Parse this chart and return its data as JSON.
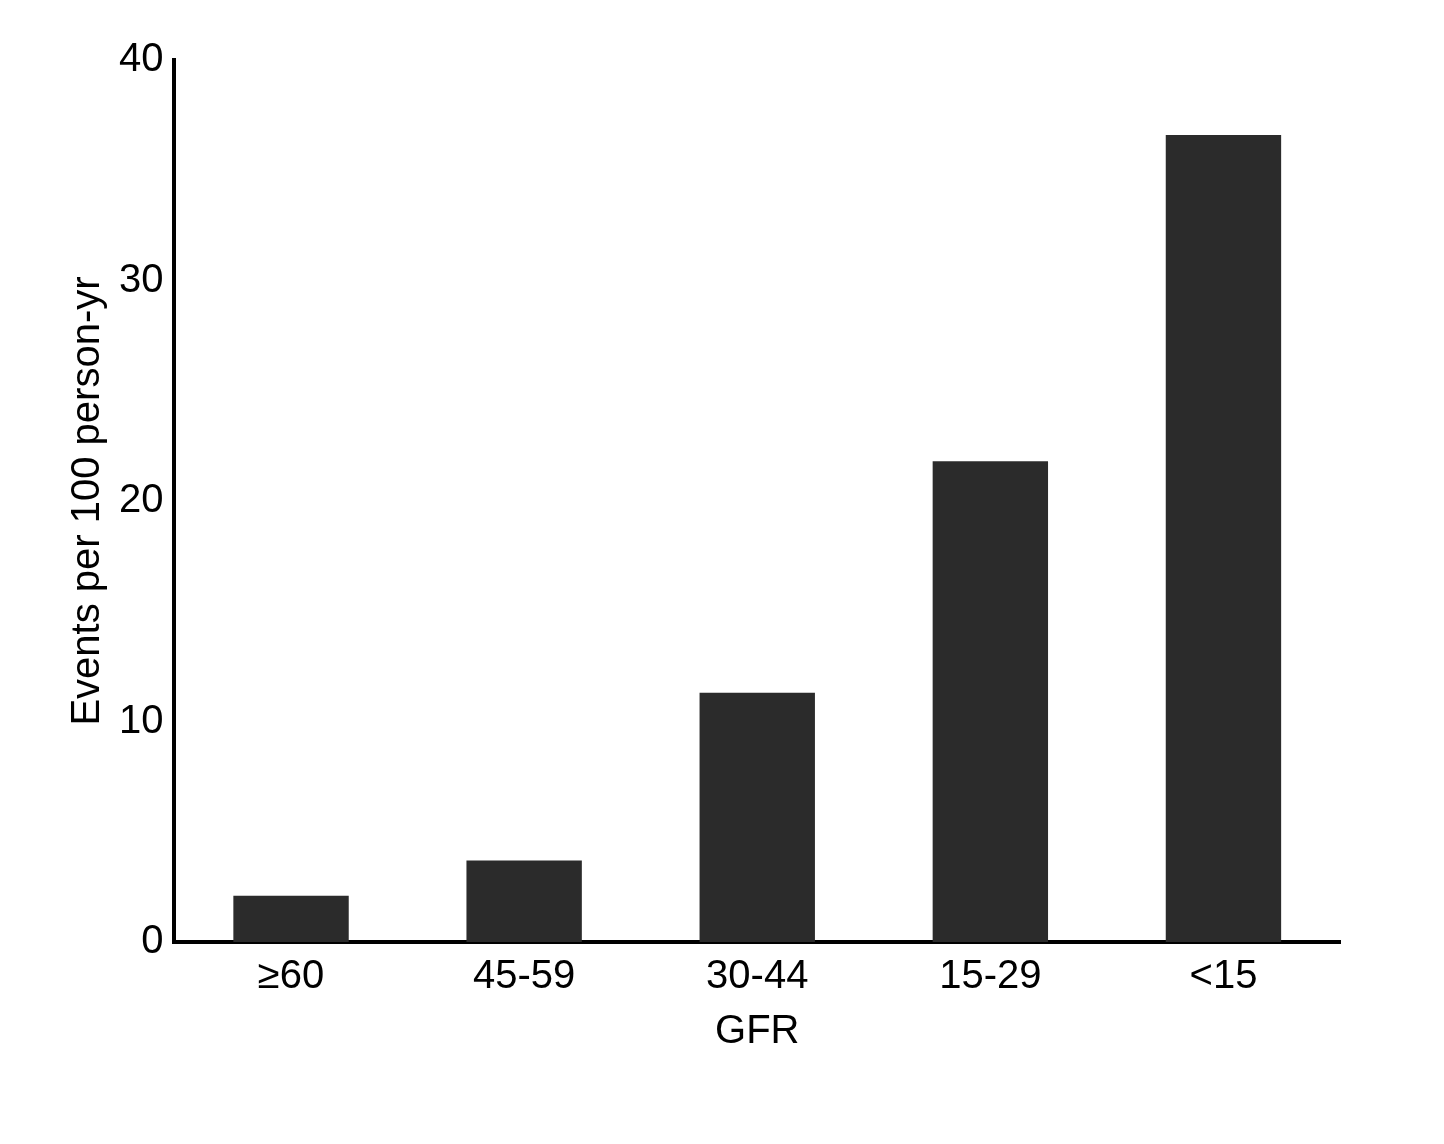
{
  "chart_data": {
    "type": "bar",
    "xlabel": "GFR",
    "ylabel": "Events per 100 person-yr",
    "categories": [
      "≥60",
      "45-59",
      "30-44",
      "15-29",
      "<15"
    ],
    "values": [
      2.1,
      3.7,
      11.3,
      21.8,
      36.6
    ],
    "color": "#2b2b2b",
    "ylim": [
      0,
      40
    ],
    "yticks": [
      0,
      10,
      20,
      30,
      40
    ],
    "grid": false,
    "legend": false
  }
}
